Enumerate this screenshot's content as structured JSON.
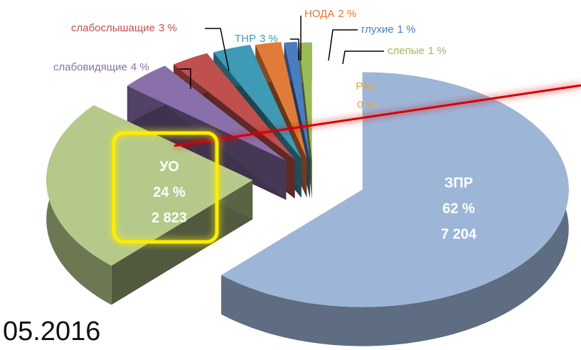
{
  "chart_data": {
    "type": "pie",
    "categories": [
      "ЗПР",
      "УО",
      "слабовидящие",
      "слабослышащие",
      "ТНР",
      "НОДА",
      "глухие",
      "слепые",
      "РАС"
    ],
    "values": [
      62,
      24,
      4,
      3,
      3,
      2,
      1,
      1,
      0
    ],
    "value_labels": [
      "62 %",
      "24 %",
      "4 %",
      "3 %",
      "3 %",
      "2 %",
      "1 %",
      "1 %",
      "0 %"
    ],
    "count_labels": [
      "7 204",
      "2 823"
    ],
    "colors": [
      "#9db6d8",
      "#b5c98a",
      "#8a70aa",
      "#c0504d",
      "#3e9ab5",
      "#e07b39",
      "#4a7cc0",
      "#9bbb59",
      "#f0a040"
    ],
    "footer": "05.2016"
  }
}
